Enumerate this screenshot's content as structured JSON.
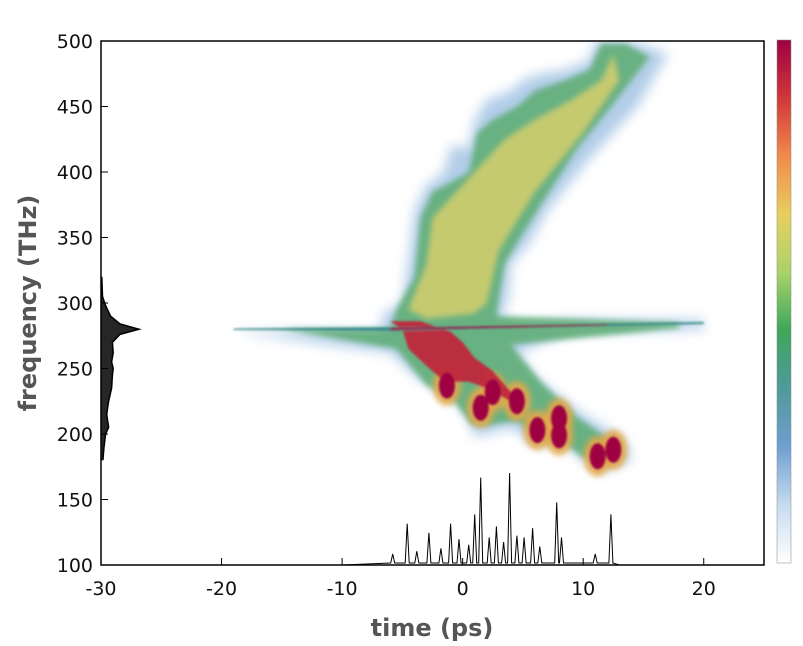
{
  "chart_data": {
    "type": "heatmap",
    "title": "",
    "xlabel": "time (ps)",
    "ylabel": "frequency (THz)",
    "xlim": [
      -30,
      25
    ],
    "ylim": [
      100,
      500
    ],
    "x_ticks": [
      -30,
      -20,
      -10,
      0,
      10,
      20
    ],
    "y_ticks": [
      100,
      150,
      200,
      250,
      300,
      350,
      400,
      450,
      500
    ],
    "grid": false,
    "colorbar": {
      "position": "right",
      "tick_labels": "none",
      "colors": [
        "#ffffff",
        "#c6dbef",
        "#6f9fd0",
        "#4f9a9a",
        "#3fa65a",
        "#a8d36a",
        "#e9cf5e",
        "#f08a4b",
        "#d1373a",
        "#9e0142"
      ]
    },
    "spectrogram_regions": [
      {
        "region": "pump line",
        "t_range": [
          -19,
          20
        ],
        "f_center": 280
      },
      {
        "region": "blue-shifted supercontinuum",
        "t_range": [
          -6,
          18
        ],
        "f_range": [
          290,
          500
        ]
      },
      {
        "region": "red-shifted soliton region",
        "t_range": [
          -6,
          8
        ],
        "f_range": [
          215,
          280
        ]
      }
    ],
    "solitons": [
      {
        "t": -1.3,
        "f": 237,
        "level": "high"
      },
      {
        "t": 1.5,
        "f": 220,
        "level": "high"
      },
      {
        "t": 2.5,
        "f": 232,
        "level": "high"
      },
      {
        "t": 4.5,
        "f": 225,
        "level": "high"
      },
      {
        "t": 6.2,
        "f": 203,
        "level": "high"
      },
      {
        "t": 8.0,
        "f": 212,
        "level": "high"
      },
      {
        "t": 8.0,
        "f": 199,
        "level": "high"
      },
      {
        "t": 11.2,
        "f": 183,
        "level": "high"
      },
      {
        "t": 12.5,
        "f": 188,
        "level": "high"
      }
    ],
    "time_marginal": {
      "description": "temporal intensity trace along bottom axis",
      "peaks": [
        {
          "t": -5.8,
          "h": 0.12
        },
        {
          "t": -4.6,
          "h": 0.45
        },
        {
          "t": -3.8,
          "h": 0.15
        },
        {
          "t": -2.8,
          "h": 0.35
        },
        {
          "t": -1.8,
          "h": 0.18
        },
        {
          "t": -1.0,
          "h": 0.45
        },
        {
          "t": -0.3,
          "h": 0.28
        },
        {
          "t": 0.5,
          "h": 0.22
        },
        {
          "t": 1.0,
          "h": 0.55
        },
        {
          "t": 1.5,
          "h": 0.95
        },
        {
          "t": 2.2,
          "h": 0.3
        },
        {
          "t": 2.8,
          "h": 0.42
        },
        {
          "t": 3.4,
          "h": 0.25
        },
        {
          "t": 3.9,
          "h": 1.0
        },
        {
          "t": 4.5,
          "h": 0.32
        },
        {
          "t": 5.1,
          "h": 0.3
        },
        {
          "t": 5.8,
          "h": 0.4
        },
        {
          "t": 6.4,
          "h": 0.2
        },
        {
          "t": 7.8,
          "h": 0.68
        },
        {
          "t": 8.2,
          "h": 0.3
        },
        {
          "t": 11.0,
          "h": 0.12
        },
        {
          "t": 12.3,
          "h": 0.55
        }
      ]
    },
    "frequency_marginal": {
      "description": "spectral intensity trace along left axis",
      "points": [
        {
          "f": 180,
          "v": 0.05
        },
        {
          "f": 190,
          "v": 0.08
        },
        {
          "f": 200,
          "v": 0.12
        },
        {
          "f": 205,
          "v": 0.2
        },
        {
          "f": 215,
          "v": 0.15
        },
        {
          "f": 225,
          "v": 0.2
        },
        {
          "f": 235,
          "v": 0.28
        },
        {
          "f": 245,
          "v": 0.3
        },
        {
          "f": 250,
          "v": 0.32
        },
        {
          "f": 255,
          "v": 0.28
        },
        {
          "f": 262,
          "v": 0.32
        },
        {
          "f": 270,
          "v": 0.3
        },
        {
          "f": 276,
          "v": 0.5
        },
        {
          "f": 280,
          "v": 1.0
        },
        {
          "f": 284,
          "v": 0.5
        },
        {
          "f": 290,
          "v": 0.25
        },
        {
          "f": 298,
          "v": 0.12
        },
        {
          "f": 305,
          "v": 0.04
        },
        {
          "f": 320,
          "v": 0.02
        }
      ]
    }
  }
}
